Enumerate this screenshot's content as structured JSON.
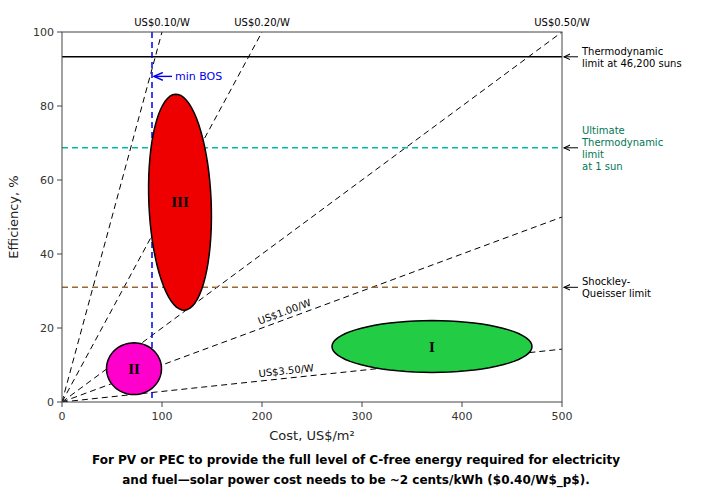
{
  "chart_data": {
    "type": "line",
    "xlabel": "Cost, US$/m²",
    "ylabel": "Efficiency, %",
    "xlim": [
      0,
      500
    ],
    "ylim": [
      0,
      100
    ],
    "xticks": [
      0,
      100,
      200,
      300,
      400,
      500
    ],
    "yticks": [
      0,
      20,
      40,
      60,
      80,
      100
    ],
    "grid": false,
    "series": [
      {
        "name": "US$0.10/W",
        "x": [
          0,
          100
        ],
        "values": [
          0,
          100
        ],
        "color": "#000000",
        "line_style": "dashed"
      },
      {
        "name": "US$0.20/W",
        "x": [
          0,
          200
        ],
        "values": [
          0,
          100
        ],
        "color": "#000000",
        "line_style": "dashed"
      },
      {
        "name": "US$0.50/W",
        "x": [
          0,
          500
        ],
        "values": [
          0,
          100
        ],
        "color": "#000000",
        "line_style": "dashed"
      },
      {
        "name": "US$1.00/W",
        "x": [
          0,
          500
        ],
        "values": [
          0,
          50
        ],
        "color": "#000000",
        "line_style": "dashed"
      },
      {
        "name": "US$3.50/W",
        "x": [
          0,
          500
        ],
        "values": [
          0,
          14.285714285714286
        ],
        "color": "#000000",
        "line_style": "dashed"
      }
    ],
    "hlines": [
      {
        "y": 93.3,
        "text": "Thermodynamic\nlimit at 46,200 suns",
        "color": "#000000",
        "text_color": "#000000",
        "line_style": "solid"
      },
      {
        "y": 68.7,
        "text": "Ultimate\nThermodynamic\nlimit\nat 1 sun",
        "color": "#00BBAA",
        "text_color": "#007755",
        "line_style": "dashed"
      },
      {
        "y": 31.0,
        "text": "Shockley-\nQueisser limit",
        "color": "#996633",
        "text_color": "#000000",
        "line_style": "dashed"
      }
    ],
    "vlines": [
      {
        "x": 90,
        "text": "min BOS",
        "color": "#0000EE",
        "line_style": "dashed"
      }
    ],
    "ellipses": [
      {
        "label": "III",
        "cx": 118,
        "cy": 54,
        "width": 65,
        "height": 56,
        "angle": -30,
        "color": "#EE0000"
      },
      {
        "label": "II",
        "cx": 72,
        "cy": 9,
        "width": 55,
        "height": 14,
        "angle": 0,
        "color": "#FF00CC"
      },
      {
        "label": "I",
        "cx": 370,
        "cy": 15,
        "width": 200,
        "height": 14,
        "angle": 0,
        "color": "#22CC44"
      }
    ],
    "caption": [
      "For PV or PEC to provide the full level of C-free energy required for electricity",
      "and fuel—solar power cost needs to be ~2 cents/kWh ($0.40/W$_p$)."
    ]
  }
}
